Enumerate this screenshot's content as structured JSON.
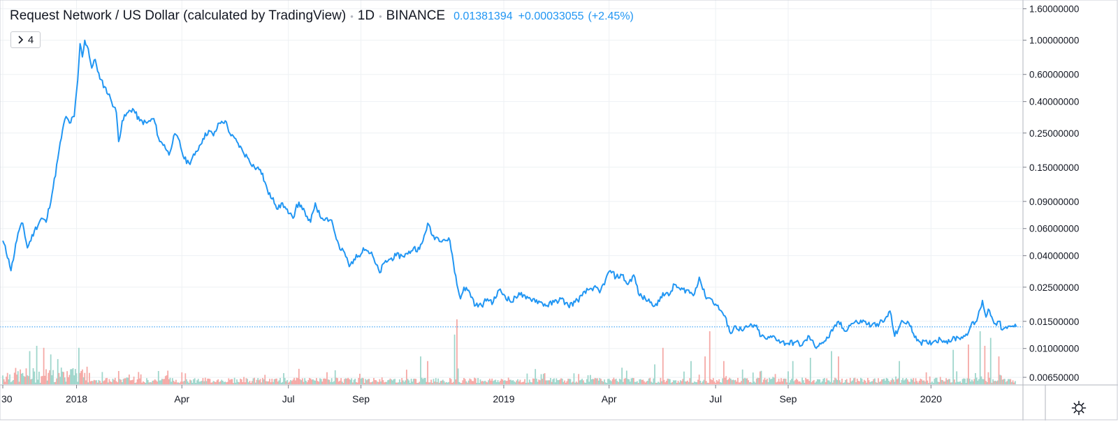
{
  "legend": {
    "title": "Request Network / US Dollar (calculated by TradingView)",
    "interval": "1D",
    "exchange": "BINANCE",
    "last_price": "0.01381394",
    "change": "+0.00033055",
    "change_pct": "(+2.45%)"
  },
  "indicators_button": {
    "icon": "chevron-right-icon",
    "count": "4"
  },
  "settings_icon": "gear-icon",
  "colors": {
    "line": "#2196f3",
    "grid": "#eef1f4",
    "vol_up": "#9fd6cc",
    "vol_down": "#f5a9a6",
    "text": "#131722",
    "axis": "#787b86"
  },
  "chart_data": {
    "type": "line",
    "title": "Request Network / US Dollar (calculated by TradingView)",
    "xlabel": "",
    "ylabel": "",
    "y_scale": "log",
    "ylim": [
      0.0058,
      1.75
    ],
    "x_range": [
      "2017-10-30",
      "2020-03-19"
    ],
    "grid": true,
    "last_value": 0.01381394,
    "x_tick_labels": [
      {
        "label": "30",
        "date": "2017-10-30"
      },
      {
        "label": "2018",
        "date": "2018-01-01"
      },
      {
        "label": "Apr",
        "date": "2018-04-01"
      },
      {
        "label": "Jul",
        "date": "2018-07-01"
      },
      {
        "label": "Sep",
        "date": "2018-09-01"
      },
      {
        "label": "2019",
        "date": "2019-01-01"
      },
      {
        "label": "Apr",
        "date": "2019-04-01"
      },
      {
        "label": "Jul",
        "date": "2019-07-01"
      },
      {
        "label": "Sep",
        "date": "2019-09-01"
      },
      {
        "label": "2020",
        "date": "2020-01-01"
      }
    ],
    "y_tick_labels": [
      "1.60000000",
      "1.00000000",
      "0.60000000",
      "0.40000000",
      "0.25000000",
      "0.15000000",
      "0.09000000",
      "0.06000000",
      "0.04000000",
      "0.02500000",
      "0.01500000",
      "0.01000000",
      "0.00650000"
    ],
    "y_tick_values": [
      1.6,
      1.0,
      0.6,
      0.4,
      0.25,
      0.15,
      0.09,
      0.06,
      0.04,
      0.025,
      0.015,
      0.01,
      0.0065
    ],
    "series": [
      {
        "name": "",
        "points": [
          [
            "2017-10-30",
            0.05
          ],
          [
            "2017-11-04",
            0.038
          ],
          [
            "2017-11-06",
            0.032
          ],
          [
            "2017-11-12",
            0.056
          ],
          [
            "2017-11-16",
            0.065
          ],
          [
            "2017-11-20",
            0.045
          ],
          [
            "2017-11-26",
            0.058
          ],
          [
            "2017-12-02",
            0.07
          ],
          [
            "2017-12-06",
            0.066
          ],
          [
            "2017-12-12",
            0.11
          ],
          [
            "2017-12-16",
            0.17
          ],
          [
            "2017-12-20",
            0.26
          ],
          [
            "2017-12-23",
            0.32
          ],
          [
            "2017-12-26",
            0.29
          ],
          [
            "2017-12-30",
            0.32
          ],
          [
            "2018-01-02",
            0.55
          ],
          [
            "2018-01-04",
            0.95
          ],
          [
            "2018-01-06",
            0.78
          ],
          [
            "2018-01-08",
            1.0
          ],
          [
            "2018-01-11",
            0.88
          ],
          [
            "2018-01-14",
            0.66
          ],
          [
            "2018-01-17",
            0.75
          ],
          [
            "2018-01-21",
            0.56
          ],
          [
            "2018-01-25",
            0.5
          ],
          [
            "2018-01-30",
            0.42
          ],
          [
            "2018-02-04",
            0.34
          ],
          [
            "2018-02-06",
            0.22
          ],
          [
            "2018-02-09",
            0.3
          ],
          [
            "2018-02-14",
            0.34
          ],
          [
            "2018-02-18",
            0.36
          ],
          [
            "2018-02-24",
            0.3
          ],
          [
            "2018-03-02",
            0.29
          ],
          [
            "2018-03-08",
            0.31
          ],
          [
            "2018-03-13",
            0.22
          ],
          [
            "2018-03-17",
            0.21
          ],
          [
            "2018-03-21",
            0.18
          ],
          [
            "2018-03-25",
            0.24
          ],
          [
            "2018-03-29",
            0.23
          ],
          [
            "2018-04-03",
            0.17
          ],
          [
            "2018-04-07",
            0.16
          ],
          [
            "2018-04-12",
            0.18
          ],
          [
            "2018-04-19",
            0.23
          ],
          [
            "2018-04-24",
            0.26
          ],
          [
            "2018-04-28",
            0.24
          ],
          [
            "2018-05-03",
            0.29
          ],
          [
            "2018-05-08",
            0.3
          ],
          [
            "2018-05-13",
            0.24
          ],
          [
            "2018-05-18",
            0.22
          ],
          [
            "2018-05-23",
            0.19
          ],
          [
            "2018-05-28",
            0.17
          ],
          [
            "2018-06-02",
            0.15
          ],
          [
            "2018-06-07",
            0.145
          ],
          [
            "2018-06-11",
            0.12
          ],
          [
            "2018-06-14",
            0.1
          ],
          [
            "2018-06-18",
            0.095
          ],
          [
            "2018-06-22",
            0.08
          ],
          [
            "2018-06-26",
            0.088
          ],
          [
            "2018-07-01",
            0.075
          ],
          [
            "2018-07-05",
            0.07
          ],
          [
            "2018-07-08",
            0.086
          ],
          [
            "2018-07-12",
            0.085
          ],
          [
            "2018-07-16",
            0.072
          ],
          [
            "2018-07-20",
            0.066
          ],
          [
            "2018-07-24",
            0.088
          ],
          [
            "2018-07-28",
            0.072
          ],
          [
            "2018-08-02",
            0.07
          ],
          [
            "2018-08-07",
            0.068
          ],
          [
            "2018-08-10",
            0.055
          ],
          [
            "2018-08-14",
            0.044
          ],
          [
            "2018-08-18",
            0.042
          ],
          [
            "2018-08-22",
            0.034
          ],
          [
            "2018-08-26",
            0.038
          ],
          [
            "2018-08-30",
            0.04
          ],
          [
            "2018-09-03",
            0.045
          ],
          [
            "2018-09-07",
            0.043
          ],
          [
            "2018-09-11",
            0.04
          ],
          [
            "2018-09-13",
            0.036
          ],
          [
            "2018-09-17",
            0.031
          ],
          [
            "2018-09-21",
            0.036
          ],
          [
            "2018-09-26",
            0.038
          ],
          [
            "2018-10-01",
            0.04
          ],
          [
            "2018-10-06",
            0.04
          ],
          [
            "2018-10-11",
            0.041
          ],
          [
            "2018-10-16",
            0.045
          ],
          [
            "2018-10-21",
            0.044
          ],
          [
            "2018-10-24",
            0.05
          ],
          [
            "2018-10-28",
            0.065
          ],
          [
            "2018-11-01",
            0.054
          ],
          [
            "2018-11-06",
            0.052
          ],
          [
            "2018-11-11",
            0.051
          ],
          [
            "2018-11-16",
            0.05
          ],
          [
            "2018-11-19",
            0.036
          ],
          [
            "2018-11-22",
            0.026
          ],
          [
            "2018-11-25",
            0.021
          ],
          [
            "2018-11-28",
            0.025
          ],
          [
            "2018-12-03",
            0.023
          ],
          [
            "2018-12-08",
            0.019
          ],
          [
            "2018-12-13",
            0.019
          ],
          [
            "2018-12-18",
            0.021
          ],
          [
            "2018-12-23",
            0.02
          ],
          [
            "2018-12-28",
            0.024
          ],
          [
            "2019-01-02",
            0.022
          ],
          [
            "2019-01-08",
            0.02
          ],
          [
            "2019-01-14",
            0.023
          ],
          [
            "2019-01-20",
            0.021
          ],
          [
            "2019-01-26",
            0.021
          ],
          [
            "2019-02-01",
            0.02
          ],
          [
            "2019-02-07",
            0.019
          ],
          [
            "2019-02-13",
            0.02
          ],
          [
            "2019-02-19",
            0.021
          ],
          [
            "2019-02-25",
            0.019
          ],
          [
            "2019-03-03",
            0.02
          ],
          [
            "2019-03-09",
            0.022
          ],
          [
            "2019-03-14",
            0.024
          ],
          [
            "2019-03-19",
            0.025
          ],
          [
            "2019-03-24",
            0.023
          ],
          [
            "2019-03-29",
            0.028
          ],
          [
            "2019-04-02",
            0.032
          ],
          [
            "2019-04-07",
            0.029
          ],
          [
            "2019-04-12",
            0.03
          ],
          [
            "2019-04-17",
            0.026
          ],
          [
            "2019-04-22",
            0.03
          ],
          [
            "2019-04-27",
            0.022
          ],
          [
            "2019-05-02",
            0.021
          ],
          [
            "2019-05-07",
            0.02
          ],
          [
            "2019-05-12",
            0.019
          ],
          [
            "2019-05-17",
            0.023
          ],
          [
            "2019-05-22",
            0.022
          ],
          [
            "2019-05-27",
            0.026
          ],
          [
            "2019-06-01",
            0.024
          ],
          [
            "2019-06-07",
            0.024
          ],
          [
            "2019-06-12",
            0.022
          ],
          [
            "2019-06-17",
            0.029
          ],
          [
            "2019-06-22",
            0.022
          ],
          [
            "2019-06-27",
            0.021
          ],
          [
            "2019-07-02",
            0.019
          ],
          [
            "2019-07-07",
            0.017
          ],
          [
            "2019-07-12",
            0.014
          ],
          [
            "2019-07-14",
            0.0125
          ],
          [
            "2019-07-18",
            0.014
          ],
          [
            "2019-07-24",
            0.013
          ],
          [
            "2019-07-30",
            0.014
          ],
          [
            "2019-08-04",
            0.014
          ],
          [
            "2019-08-09",
            0.012
          ],
          [
            "2019-08-14",
            0.0115
          ],
          [
            "2019-08-20",
            0.012
          ],
          [
            "2019-08-26",
            0.011
          ],
          [
            "2019-09-01",
            0.0108
          ],
          [
            "2019-09-07",
            0.011
          ],
          [
            "2019-09-13",
            0.0105
          ],
          [
            "2019-09-19",
            0.012
          ],
          [
            "2019-09-24",
            0.0102
          ],
          [
            "2019-09-28",
            0.0108
          ],
          [
            "2019-10-03",
            0.0112
          ],
          [
            "2019-10-09",
            0.013
          ],
          [
            "2019-10-14",
            0.015
          ],
          [
            "2019-10-19",
            0.013
          ],
          [
            "2019-10-25",
            0.0145
          ],
          [
            "2019-10-30",
            0.0148
          ],
          [
            "2019-11-05",
            0.015
          ],
          [
            "2019-11-11",
            0.014
          ],
          [
            "2019-11-16",
            0.0145
          ],
          [
            "2019-11-22",
            0.015
          ],
          [
            "2019-11-27",
            0.0175
          ],
          [
            "2019-12-01",
            0.012
          ],
          [
            "2019-12-06",
            0.0145
          ],
          [
            "2019-12-12",
            0.015
          ],
          [
            "2019-12-17",
            0.0125
          ],
          [
            "2019-12-23",
            0.011
          ],
          [
            "2019-12-29",
            0.0108
          ],
          [
            "2020-01-04",
            0.0112
          ],
          [
            "2020-01-09",
            0.0115
          ],
          [
            "2020-01-14",
            0.0112
          ],
          [
            "2020-01-19",
            0.0114
          ],
          [
            "2020-01-24",
            0.0118
          ],
          [
            "2020-01-30",
            0.012
          ],
          [
            "2020-02-04",
            0.014
          ],
          [
            "2020-02-09",
            0.015
          ],
          [
            "2020-02-12",
            0.018
          ],
          [
            "2020-02-14",
            0.0205
          ],
          [
            "2020-02-17",
            0.016
          ],
          [
            "2020-02-19",
            0.018
          ],
          [
            "2020-02-22",
            0.016
          ],
          [
            "2020-02-25",
            0.0145
          ],
          [
            "2020-02-28",
            0.015
          ],
          [
            "2020-03-02",
            0.0132
          ],
          [
            "2020-03-06",
            0.0135
          ],
          [
            "2020-03-11",
            0.014
          ],
          [
            "2020-03-14",
            0.01381394
          ]
        ]
      }
    ],
    "volume_note": "volume histogram at bottom (green = up day, red = down day), unlabeled scale",
    "volume_spikes": [
      {
        "x": "2017-11-22",
        "rel": 0.5,
        "up": true
      },
      {
        "x": "2017-11-28",
        "rel": 0.58,
        "up": true
      },
      {
        "x": "2017-12-04",
        "rel": 0.55,
        "up": false
      },
      {
        "x": "2017-12-10",
        "rel": 0.45,
        "up": true
      },
      {
        "x": "2017-12-16",
        "rel": 0.38,
        "up": true
      },
      {
        "x": "2018-01-03",
        "rel": 0.55,
        "up": true
      },
      {
        "x": "2018-02-06",
        "rel": 0.2,
        "up": false
      },
      {
        "x": "2018-03-12",
        "rel": 0.2,
        "up": true
      },
      {
        "x": "2018-04-01",
        "rel": 0.18,
        "up": false
      },
      {
        "x": "2018-10-10",
        "rel": 0.22,
        "up": false
      },
      {
        "x": "2018-10-22",
        "rel": 0.42,
        "up": true
      },
      {
        "x": "2018-10-28",
        "rel": 0.35,
        "up": false
      },
      {
        "x": "2018-11-20",
        "rel": 0.75,
        "up": true
      },
      {
        "x": "2018-11-22",
        "rel": 0.98,
        "up": false
      },
      {
        "x": "2019-04-12",
        "rel": 0.25,
        "up": true
      },
      {
        "x": "2019-05-10",
        "rel": 0.3,
        "up": true
      },
      {
        "x": "2019-05-17",
        "rel": 0.55,
        "up": false
      },
      {
        "x": "2019-06-10",
        "rel": 0.35,
        "up": true
      },
      {
        "x": "2019-06-22",
        "rel": 0.42,
        "up": false
      },
      {
        "x": "2019-06-26",
        "rel": 0.8,
        "up": false
      },
      {
        "x": "2019-07-08",
        "rel": 0.35,
        "up": false
      },
      {
        "x": "2019-09-05",
        "rel": 0.35,
        "up": true
      },
      {
        "x": "2019-09-20",
        "rel": 0.4,
        "up": true
      },
      {
        "x": "2019-10-08",
        "rel": 0.5,
        "up": true
      },
      {
        "x": "2019-10-14",
        "rel": 0.42,
        "up": false
      },
      {
        "x": "2019-12-05",
        "rel": 0.35,
        "up": true
      },
      {
        "x": "2020-01-20",
        "rel": 0.52,
        "up": true
      },
      {
        "x": "2020-02-02",
        "rel": 0.6,
        "up": false
      },
      {
        "x": "2020-02-12",
        "rel": 0.8,
        "up": true
      },
      {
        "x": "2020-02-16",
        "rel": 0.58,
        "up": false
      },
      {
        "x": "2020-02-21",
        "rel": 0.7,
        "up": true
      },
      {
        "x": "2020-02-28",
        "rel": 0.42,
        "up": false
      }
    ]
  }
}
